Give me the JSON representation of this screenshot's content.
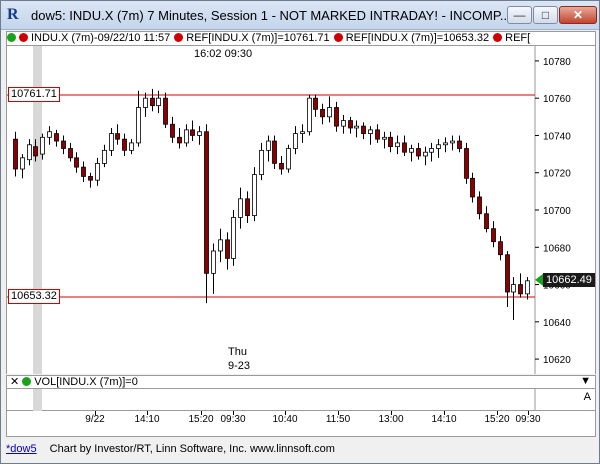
{
  "window": {
    "title": "dow5: INDU.X (7m) 7 Minutes, Session 1 - NOT MARKED INTRADAY! - INCOMP...",
    "app_icon": "R",
    "icons": [
      "minimize-icon",
      "maximize-icon",
      "close-icon"
    ]
  },
  "legend": [
    {
      "text": "INDU.X (7m)-09/22/10 11:57",
      "dot_color": "#1aa31a",
      "dot2_color": "#d00000"
    },
    {
      "text": "REF[INDU.X (7m)]=10761.71",
      "dot_color": "#d00000"
    },
    {
      "text": "REF[INDU.X (7m)]=10653.32",
      "dot_color": "#d00000"
    },
    {
      "text": "REF[",
      "dot_color": "#d00000"
    }
  ],
  "time_note": "16:02  09:30",
  "day_marker": {
    "line1": "Thu",
    "line2": "9-23"
  },
  "ref_lines": [
    {
      "label": "10761.71",
      "value": 10761.71,
      "color": "#d00000"
    },
    {
      "label": "10653.32",
      "value": 10653.32,
      "color": "#d00000"
    }
  ],
  "last_price": {
    "label": "10662.49",
    "value": 10662.49,
    "color": "#1aa31a"
  },
  "y_axis": {
    "ticks": [
      10780,
      10760,
      10740,
      10720,
      10700,
      10680,
      10660,
      10640,
      10620
    ]
  },
  "x_axis": {
    "labels": [
      "9/22",
      "14:10",
      "15:20",
      "09:30",
      "10:40",
      "11:50",
      "13:00",
      "14:10",
      "15:20",
      "09:30"
    ]
  },
  "volume_panel": {
    "label": "VOL[INDU.X (7m)]=0",
    "dot_color": "#1aa31a",
    "side_label": "A"
  },
  "status_bar": {
    "link": "*dow5",
    "text": "Chart by Investor/RT, Linn Software, Inc. www.linnsoft.com"
  },
  "chart_data": {
    "type": "candlestick",
    "ylim": [
      10612,
      10788
    ],
    "up_color": "#ffffff",
    "down_color": "#8b0000",
    "candles": [
      {
        "o": 10738,
        "h": 10742,
        "l": 10718,
        "c": 10722
      },
      {
        "o": 10722,
        "h": 10730,
        "l": 10717,
        "c": 10728
      },
      {
        "o": 10727,
        "h": 10738,
        "l": 10724,
        "c": 10735
      },
      {
        "o": 10734,
        "h": 10738,
        "l": 10726,
        "c": 10729
      },
      {
        "o": 10730,
        "h": 10741,
        "l": 10727,
        "c": 10739
      },
      {
        "o": 10739,
        "h": 10745,
        "l": 10735,
        "c": 10742
      },
      {
        "o": 10741,
        "h": 10743,
        "l": 10734,
        "c": 10737
      },
      {
        "o": 10737,
        "h": 10740,
        "l": 10730,
        "c": 10733
      },
      {
        "o": 10733,
        "h": 10736,
        "l": 10726,
        "c": 10728
      },
      {
        "o": 10728,
        "h": 10731,
        "l": 10720,
        "c": 10723
      },
      {
        "o": 10723,
        "h": 10726,
        "l": 10715,
        "c": 10718
      },
      {
        "o": 10718,
        "h": 10720,
        "l": 10712,
        "c": 10716
      },
      {
        "o": 10716,
        "h": 10728,
        "l": 10713,
        "c": 10725
      },
      {
        "o": 10725,
        "h": 10735,
        "l": 10723,
        "c": 10732
      },
      {
        "o": 10732,
        "h": 10744,
        "l": 10729,
        "c": 10741
      },
      {
        "o": 10741,
        "h": 10746,
        "l": 10735,
        "c": 10738
      },
      {
        "o": 10738,
        "h": 10741,
        "l": 10729,
        "c": 10732
      },
      {
        "o": 10732,
        "h": 10738,
        "l": 10730,
        "c": 10736
      },
      {
        "o": 10736,
        "h": 10764,
        "l": 10734,
        "c": 10755
      },
      {
        "o": 10755,
        "h": 10763,
        "l": 10750,
        "c": 10760
      },
      {
        "o": 10760,
        "h": 10765,
        "l": 10753,
        "c": 10756
      },
      {
        "o": 10756,
        "h": 10764,
        "l": 10752,
        "c": 10760
      },
      {
        "o": 10760,
        "h": 10763,
        "l": 10744,
        "c": 10746
      },
      {
        "o": 10746,
        "h": 10750,
        "l": 10736,
        "c": 10739
      },
      {
        "o": 10739,
        "h": 10744,
        "l": 10733,
        "c": 10736
      },
      {
        "o": 10736,
        "h": 10746,
        "l": 10734,
        "c": 10743
      },
      {
        "o": 10743,
        "h": 10748,
        "l": 10737,
        "c": 10740
      },
      {
        "o": 10740,
        "h": 10745,
        "l": 10735,
        "c": 10742
      },
      {
        "o": 10742,
        "h": 10746,
        "l": 10650,
        "c": 10666
      },
      {
        "o": 10666,
        "h": 10682,
        "l": 10655,
        "c": 10678
      },
      {
        "o": 10678,
        "h": 10690,
        "l": 10672,
        "c": 10684
      },
      {
        "o": 10684,
        "h": 10688,
        "l": 10668,
        "c": 10674
      },
      {
        "o": 10674,
        "h": 10700,
        "l": 10670,
        "c": 10696
      },
      {
        "o": 10696,
        "h": 10712,
        "l": 10690,
        "c": 10706
      },
      {
        "o": 10706,
        "h": 10710,
        "l": 10693,
        "c": 10697
      },
      {
        "o": 10697,
        "h": 10723,
        "l": 10694,
        "c": 10719
      },
      {
        "o": 10719,
        "h": 10736,
        "l": 10716,
        "c": 10732
      },
      {
        "o": 10732,
        "h": 10740,
        "l": 10726,
        "c": 10737
      },
      {
        "o": 10737,
        "h": 10740,
        "l": 10722,
        "c": 10725
      },
      {
        "o": 10725,
        "h": 10729,
        "l": 10719,
        "c": 10722
      },
      {
        "o": 10722,
        "h": 10735,
        "l": 10720,
        "c": 10733
      },
      {
        "o": 10733,
        "h": 10745,
        "l": 10730,
        "c": 10741
      },
      {
        "o": 10741,
        "h": 10746,
        "l": 10736,
        "c": 10742
      },
      {
        "o": 10742,
        "h": 10762,
        "l": 10740,
        "c": 10760
      },
      {
        "o": 10760,
        "h": 10762,
        "l": 10750,
        "c": 10754
      },
      {
        "o": 10754,
        "h": 10757,
        "l": 10746,
        "c": 10750
      },
      {
        "o": 10750,
        "h": 10761,
        "l": 10747,
        "c": 10755
      },
      {
        "o": 10755,
        "h": 10758,
        "l": 10742,
        "c": 10745
      },
      {
        "o": 10745,
        "h": 10751,
        "l": 10741,
        "c": 10748
      },
      {
        "o": 10748,
        "h": 10750,
        "l": 10741,
        "c": 10744
      },
      {
        "o": 10744,
        "h": 10748,
        "l": 10739,
        "c": 10745
      },
      {
        "o": 10745,
        "h": 10747,
        "l": 10738,
        "c": 10741
      },
      {
        "o": 10741,
        "h": 10745,
        "l": 10735,
        "c": 10743
      },
      {
        "o": 10743,
        "h": 10746,
        "l": 10736,
        "c": 10738
      },
      {
        "o": 10738,
        "h": 10742,
        "l": 10733,
        "c": 10739
      },
      {
        "o": 10739,
        "h": 10742,
        "l": 10731,
        "c": 10734
      },
      {
        "o": 10734,
        "h": 10740,
        "l": 10730,
        "c": 10736
      },
      {
        "o": 10736,
        "h": 10740,
        "l": 10729,
        "c": 10731
      },
      {
        "o": 10731,
        "h": 10735,
        "l": 10726,
        "c": 10733
      },
      {
        "o": 10733,
        "h": 10736,
        "l": 10727,
        "c": 10729
      },
      {
        "o": 10729,
        "h": 10734,
        "l": 10724,
        "c": 10731
      },
      {
        "o": 10731,
        "h": 10736,
        "l": 10726,
        "c": 10733
      },
      {
        "o": 10733,
        "h": 10738,
        "l": 10728,
        "c": 10735
      },
      {
        "o": 10735,
        "h": 10739,
        "l": 10731,
        "c": 10736
      },
      {
        "o": 10736,
        "h": 10740,
        "l": 10732,
        "c": 10737
      },
      {
        "o": 10737,
        "h": 10740,
        "l": 10731,
        "c": 10733
      },
      {
        "o": 10733,
        "h": 10736,
        "l": 10714,
        "c": 10717
      },
      {
        "o": 10717,
        "h": 10720,
        "l": 10704,
        "c": 10707
      },
      {
        "o": 10707,
        "h": 10710,
        "l": 10695,
        "c": 10698
      },
      {
        "o": 10698,
        "h": 10702,
        "l": 10688,
        "c": 10690
      },
      {
        "o": 10690,
        "h": 10694,
        "l": 10680,
        "c": 10683
      },
      {
        "o": 10683,
        "h": 10686,
        "l": 10673,
        "c": 10676
      },
      {
        "o": 10676,
        "h": 10678,
        "l": 10648,
        "c": 10656
      },
      {
        "o": 10656,
        "h": 10664,
        "l": 10641,
        "c": 10660
      },
      {
        "o": 10660,
        "h": 10666,
        "l": 10653,
        "c": 10655
      },
      {
        "o": 10655,
        "h": 10664,
        "l": 10652,
        "c": 10662
      }
    ]
  }
}
